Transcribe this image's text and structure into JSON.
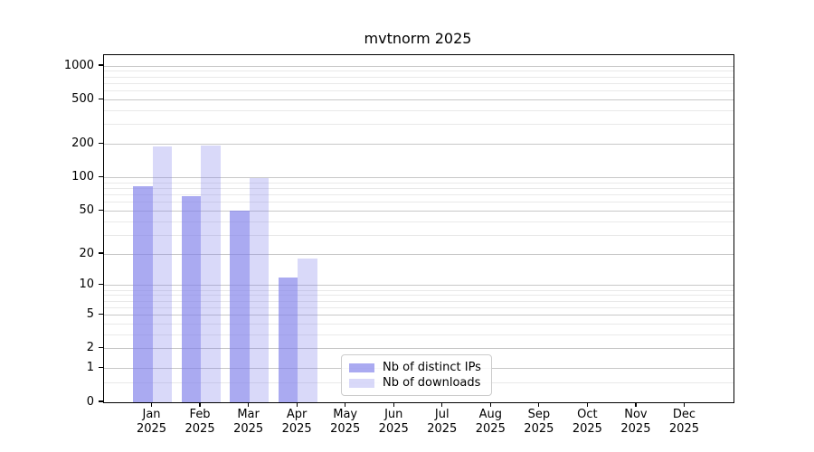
{
  "title": "mvtnorm 2025",
  "colors": {
    "bar_ips": "rgba(130, 130, 235, 0.68)",
    "bar_downloads": "rgba(130, 130, 235, 0.30)",
    "grid_major": "#c8c8c8",
    "grid_minor": "#e9e9e9",
    "axis": "#000000",
    "text": "#000000"
  },
  "legend": {
    "items": [
      {
        "label": "Nb of distinct IPs",
        "series": "ips"
      },
      {
        "label": "Nb of downloads",
        "series": "downloads"
      }
    ]
  },
  "chart_data": {
    "type": "bar",
    "title": "mvtnorm 2025",
    "categories": [
      "Jan 2025",
      "Feb 2025",
      "Mar 2025",
      "Apr 2025",
      "May 2025",
      "Jun 2025",
      "Jul 2025",
      "Aug 2025",
      "Sep 2025",
      "Oct 2025",
      "Nov 2025",
      "Dec 2025"
    ],
    "series": [
      {
        "name": "Nb of distinct IPs",
        "values": [
          83,
          68,
          50,
          12,
          0,
          0,
          0,
          0,
          0,
          0,
          0,
          0
        ]
      },
      {
        "name": "Nb of downloads",
        "values": [
          189,
          193,
          100,
          18,
          0,
          0,
          0,
          0,
          0,
          0,
          0,
          0
        ]
      }
    ],
    "xlabel": "",
    "ylabel": "",
    "yscale": "log1p",
    "ylim": [
      0,
      1000
    ],
    "yticks": [
      0,
      1,
      2,
      5,
      10,
      20,
      50,
      100,
      200,
      500,
      1000
    ],
    "minor_gridlines": [
      0.5,
      3,
      4,
      6,
      7,
      8,
      9,
      30,
      40,
      60,
      70,
      80,
      90,
      300,
      400,
      600,
      700,
      800,
      900
    ],
    "grid": true,
    "legend_position": "lower-center"
  }
}
